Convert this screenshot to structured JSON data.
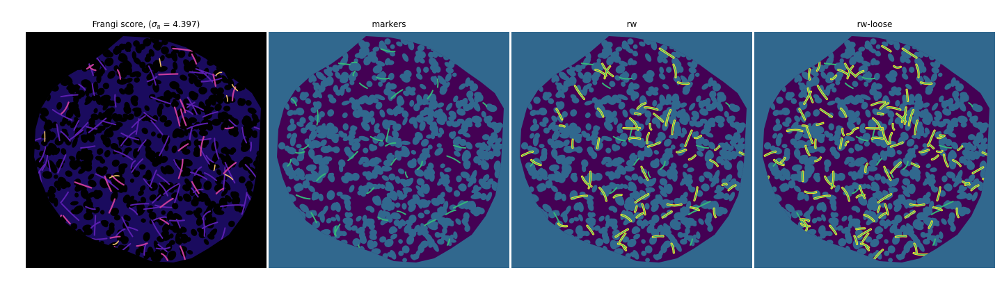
{
  "panels": [
    {
      "title_prefix": "Frangi score, (",
      "title_sigma": "σ",
      "title_sub": "8",
      "title_suffix": "= 4.397)",
      "kind": "frangi"
    },
    {
      "title": "markers",
      "kind": "markers"
    },
    {
      "title": "rw",
      "kind": "rw"
    },
    {
      "title": "rw-loose",
      "kind": "rwloose"
    }
  ],
  "colors": {
    "frangi_background": "#000000",
    "frangi_base": "#1a0b5e",
    "frangi_mid": "#5b1fb0",
    "frangi_high": "#c63c9a",
    "frangi_peak": "#f3c26b",
    "viridis_background": "#31688e",
    "viridis_tissue": "#440154",
    "viridis_marker": "#35b779",
    "viridis_yellow": "#fde725"
  }
}
